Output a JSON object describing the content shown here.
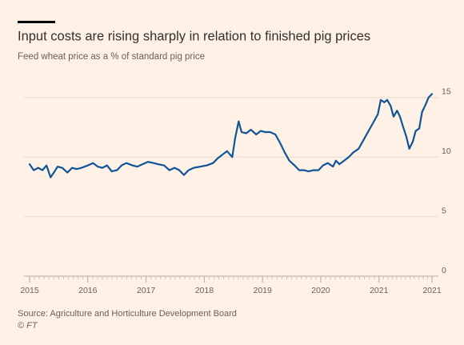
{
  "chart_data": {
    "type": "line",
    "title": "Input costs are rising sharply in relation to finished pig prices",
    "subtitle": "Feed wheat price as a % of standard pig price",
    "source": "Source: Agriculture and Horticulture Development Board",
    "credit": "© FT",
    "x": [
      2015.0,
      2015.07,
      2015.15,
      2015.22,
      2015.29,
      2015.36,
      2015.43,
      2015.48,
      2015.56,
      2015.65,
      2015.73,
      2015.81,
      2015.89,
      2016.0,
      2016.09,
      2016.17,
      2016.25,
      2016.33,
      2016.41,
      2016.5,
      2016.58,
      2016.66,
      2016.77,
      2016.85,
      2016.94,
      2017.03,
      2017.13,
      2017.21,
      2017.31,
      2017.4,
      2017.49,
      2017.57,
      2017.65,
      2017.73,
      2017.82,
      2017.93,
      2018.04,
      2018.15,
      2018.23,
      2018.31,
      2018.39,
      2018.48,
      2018.53,
      2018.59,
      2018.64,
      2018.72,
      2018.8,
      2018.89,
      2018.97,
      2019.05,
      2019.13,
      2019.22,
      2019.3,
      2019.38,
      2019.46,
      2019.55,
      2019.63,
      2019.71,
      2019.79,
      2019.88,
      2019.96,
      2020.04,
      2020.12,
      2020.21,
      2020.26,
      2020.32,
      2020.4,
      2020.48,
      2020.56,
      2020.65,
      2020.73,
      2020.81,
      2020.89,
      2020.98,
      2021.03,
      2021.09,
      2021.14,
      2021.2,
      2021.25,
      2021.31,
      2021.36,
      2021.41,
      2021.47,
      2021.52,
      2021.58,
      2021.63,
      2021.69,
      2021.74,
      2021.8,
      2021.85,
      2021.91
    ],
    "series": [
      {
        "name": "Feed wheat price as % of pig price",
        "color": "#0f5499",
        "values": [
          9.4,
          8.9,
          9.1,
          8.9,
          9.3,
          8.3,
          8.8,
          9.2,
          9.1,
          8.7,
          9.1,
          9.0,
          9.1,
          9.3,
          9.5,
          9.2,
          9.1,
          9.3,
          8.8,
          8.9,
          9.3,
          9.5,
          9.3,
          9.2,
          9.4,
          9.6,
          9.5,
          9.4,
          9.3,
          8.9,
          9.1,
          8.9,
          8.5,
          8.9,
          9.1,
          9.2,
          9.3,
          9.5,
          9.9,
          10.2,
          10.5,
          10.0,
          11.6,
          13.0,
          12.1,
          12.0,
          12.3,
          11.9,
          12.2,
          12.1,
          12.1,
          11.9,
          11.2,
          10.4,
          9.7,
          9.3,
          8.9,
          8.9,
          8.8,
          8.9,
          8.9,
          9.3,
          9.5,
          9.2,
          9.7,
          9.4,
          9.7,
          10.0,
          10.4,
          10.7,
          11.4,
          12.1,
          12.8,
          13.6,
          14.8,
          14.6,
          14.8,
          14.3,
          13.4,
          13.9,
          13.4,
          12.6,
          11.7,
          10.7,
          11.3,
          12.2,
          12.4,
          13.8,
          14.4,
          15.0,
          15.3
        ]
      }
    ],
    "xlim": [
      2015,
      2021.91
    ],
    "xticks": [
      2015,
      2016,
      2017,
      2018,
      2019,
      2020,
      2021,
      {
        "value": 2021.91,
        "label": "2021"
      }
    ],
    "ylim": [
      0,
      16
    ],
    "yticks": [
      0,
      5,
      10,
      15
    ],
    "grid": true
  }
}
